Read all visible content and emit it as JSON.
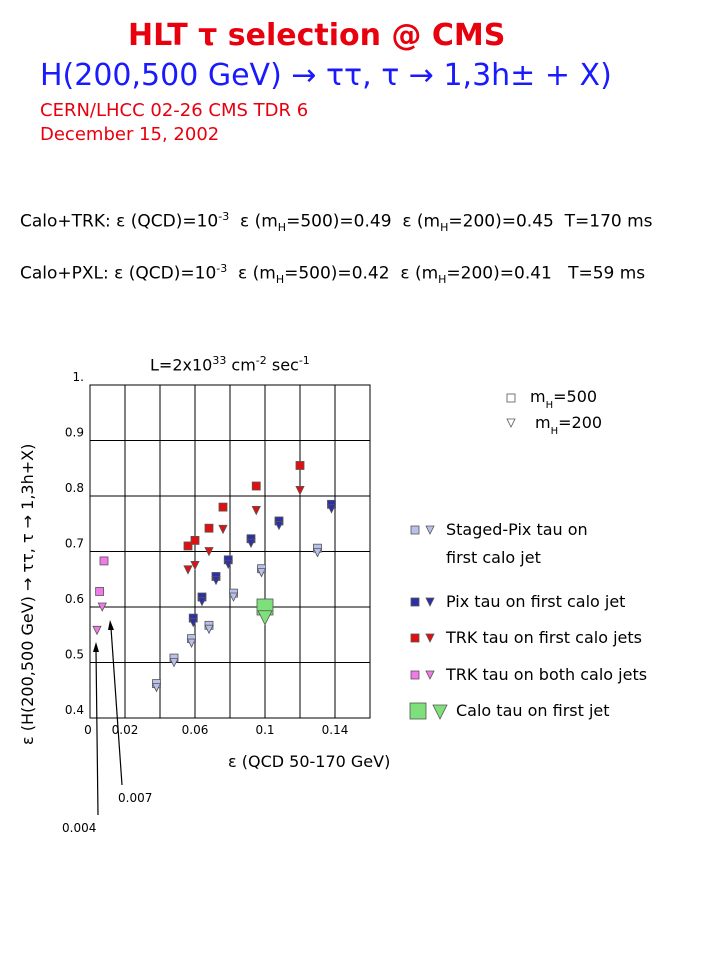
{
  "header": {
    "title_line1": "HLT τ selection @ CMS",
    "title_line2": "H(200,500 GeV) → ττ, τ → 1,3h± + X)",
    "ref_line1": "CERN/LHCC 02-26    CMS TDR 6",
    "ref_line2": "December 15, 2002"
  },
  "efficiencies": {
    "trk": {
      "label": "Calo+TRK:",
      "qcd_eff": "10",
      "qcd_exp": "-3",
      "mh500": "0.49",
      "mh200": "0.45",
      "time": "T=170 ms"
    },
    "pxl": {
      "label": "Calo+PXL:",
      "qcd_eff": "10",
      "qcd_exp": "-3",
      "mh500": "0.42",
      "mh200": "0.41",
      "time": "T=59 ms"
    }
  },
  "luminosity": {
    "base": "L=2x10",
    "exp": "33",
    "unit1": " cm",
    "exp2": "-2",
    "unit2": " sec",
    "exp3": "-1"
  },
  "colors": {
    "staged_pix": "#b9c0ec",
    "pix": "#2d2fa6",
    "trk_first": "#e01010",
    "trk_both": "#f07ae8",
    "calo": "#7de07a"
  },
  "chart_data": {
    "type": "scatter",
    "title": "",
    "xlabel": "ε (QCD 50-170 GeV)",
    "ylabel": "ε (H(200,500 GeV) → ττ, τ → 1,3h+X)",
    "xlim": [
      0,
      0.16
    ],
    "ylim": [
      0.4,
      1.0
    ],
    "x_ticks": [
      "0",
      "0.02",
      "0.06",
      "0.1",
      "0.14"
    ],
    "y_ticks": [
      "0.4",
      "0.5",
      "0.6",
      "0.7",
      "0.8",
      "0.9",
      "1."
    ],
    "grid": true,
    "markers_legend": [
      {
        "label": "m",
        "sub": "H",
        "rest": "=500",
        "shape": "square"
      },
      {
        "label": "m",
        "sub": "H",
        "rest": "=200",
        "shape": "triangle"
      }
    ],
    "series": [
      {
        "name": "Staged-Pix tau on first calo jet",
        "name_line2": "first calo jet",
        "color_key": "staged_pix",
        "mh500": [
          [
            0.038,
            0.462
          ],
          [
            0.048,
            0.508
          ],
          [
            0.058,
            0.543
          ],
          [
            0.068,
            0.567
          ],
          [
            0.082,
            0.625
          ],
          [
            0.098,
            0.669
          ],
          [
            0.13,
            0.706
          ]
        ],
        "mh200": [
          [
            0.038,
            0.455
          ],
          [
            0.048,
            0.5
          ],
          [
            0.058,
            0.535
          ],
          [
            0.068,
            0.56
          ],
          [
            0.082,
            0.618
          ],
          [
            0.098,
            0.662
          ],
          [
            0.13,
            0.698
          ]
        ]
      },
      {
        "name": "Pix tau on first calo jet",
        "color_key": "pix",
        "mh500": [
          [
            0.059,
            0.58
          ],
          [
            0.064,
            0.618
          ],
          [
            0.072,
            0.655
          ],
          [
            0.079,
            0.685
          ],
          [
            0.092,
            0.723
          ],
          [
            0.108,
            0.755
          ],
          [
            0.138,
            0.785
          ]
        ],
        "mh200": [
          [
            0.059,
            0.572
          ],
          [
            0.064,
            0.61
          ],
          [
            0.072,
            0.648
          ],
          [
            0.079,
            0.677
          ],
          [
            0.092,
            0.715
          ],
          [
            0.108,
            0.747
          ],
          [
            0.138,
            0.777
          ]
        ]
      },
      {
        "name": "TRK tau on first calo jets",
        "color_key": "trk_first",
        "mh500": [
          [
            0.056,
            0.71
          ],
          [
            0.06,
            0.72
          ],
          [
            0.068,
            0.742
          ],
          [
            0.076,
            0.78
          ],
          [
            0.095,
            0.818
          ],
          [
            0.12,
            0.855
          ]
        ],
        "mh200": [
          [
            0.056,
            0.667
          ],
          [
            0.06,
            0.675
          ],
          [
            0.068,
            0.7
          ],
          [
            0.076,
            0.74
          ],
          [
            0.095,
            0.774
          ],
          [
            0.12,
            0.81
          ]
        ]
      },
      {
        "name": "TRK tau on both calo jets",
        "color_key": "trk_both",
        "mh500": [
          [
            0.0055,
            0.628
          ],
          [
            0.008,
            0.683
          ]
        ],
        "mh200": [
          [
            0.004,
            0.558
          ],
          [
            0.007,
            0.6
          ]
        ]
      },
      {
        "name": "Calo tau on first jet",
        "color_key": "calo",
        "mh500": [
          [
            0.1,
            0.6
          ]
        ],
        "mh200": [
          [
            0.1,
            0.595
          ]
        ]
      }
    ],
    "annotations": [
      {
        "text": "0.004",
        "x": 0.004,
        "y": 0.555
      },
      {
        "text": "0.007",
        "x": 0.007,
        "y": 0.595
      }
    ]
  }
}
